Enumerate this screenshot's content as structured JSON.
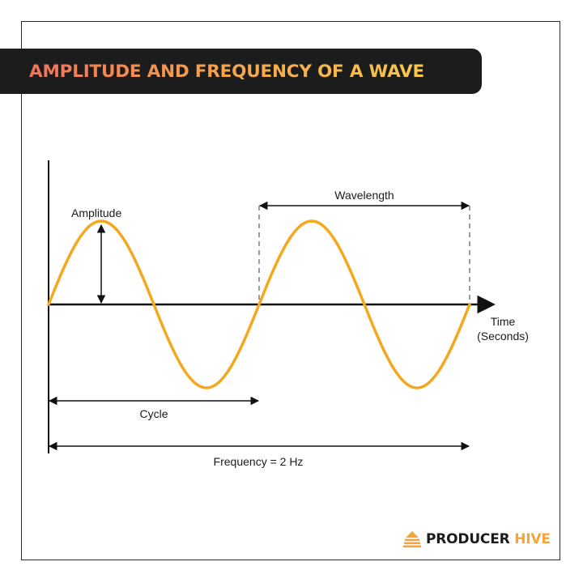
{
  "title": "AMPLITUDE AND FREQUENCY OF A WAVE",
  "labels": {
    "amplitude": "Amplitude",
    "wavelength": "Wavelength",
    "cycle": "Cycle",
    "frequency": "Frequency = 2 Hz",
    "time_line1": "Time",
    "time_line2": "(Seconds)"
  },
  "brand": {
    "name_part1": "PRODUCER",
    "name_part2": "HIVE"
  },
  "colors": {
    "wave": "#f4a81d",
    "banner": "#1c1c1c",
    "axis": "#111111",
    "accent": "#f6a53a"
  },
  "icons": {
    "brand": "hive-logo-icon"
  }
}
